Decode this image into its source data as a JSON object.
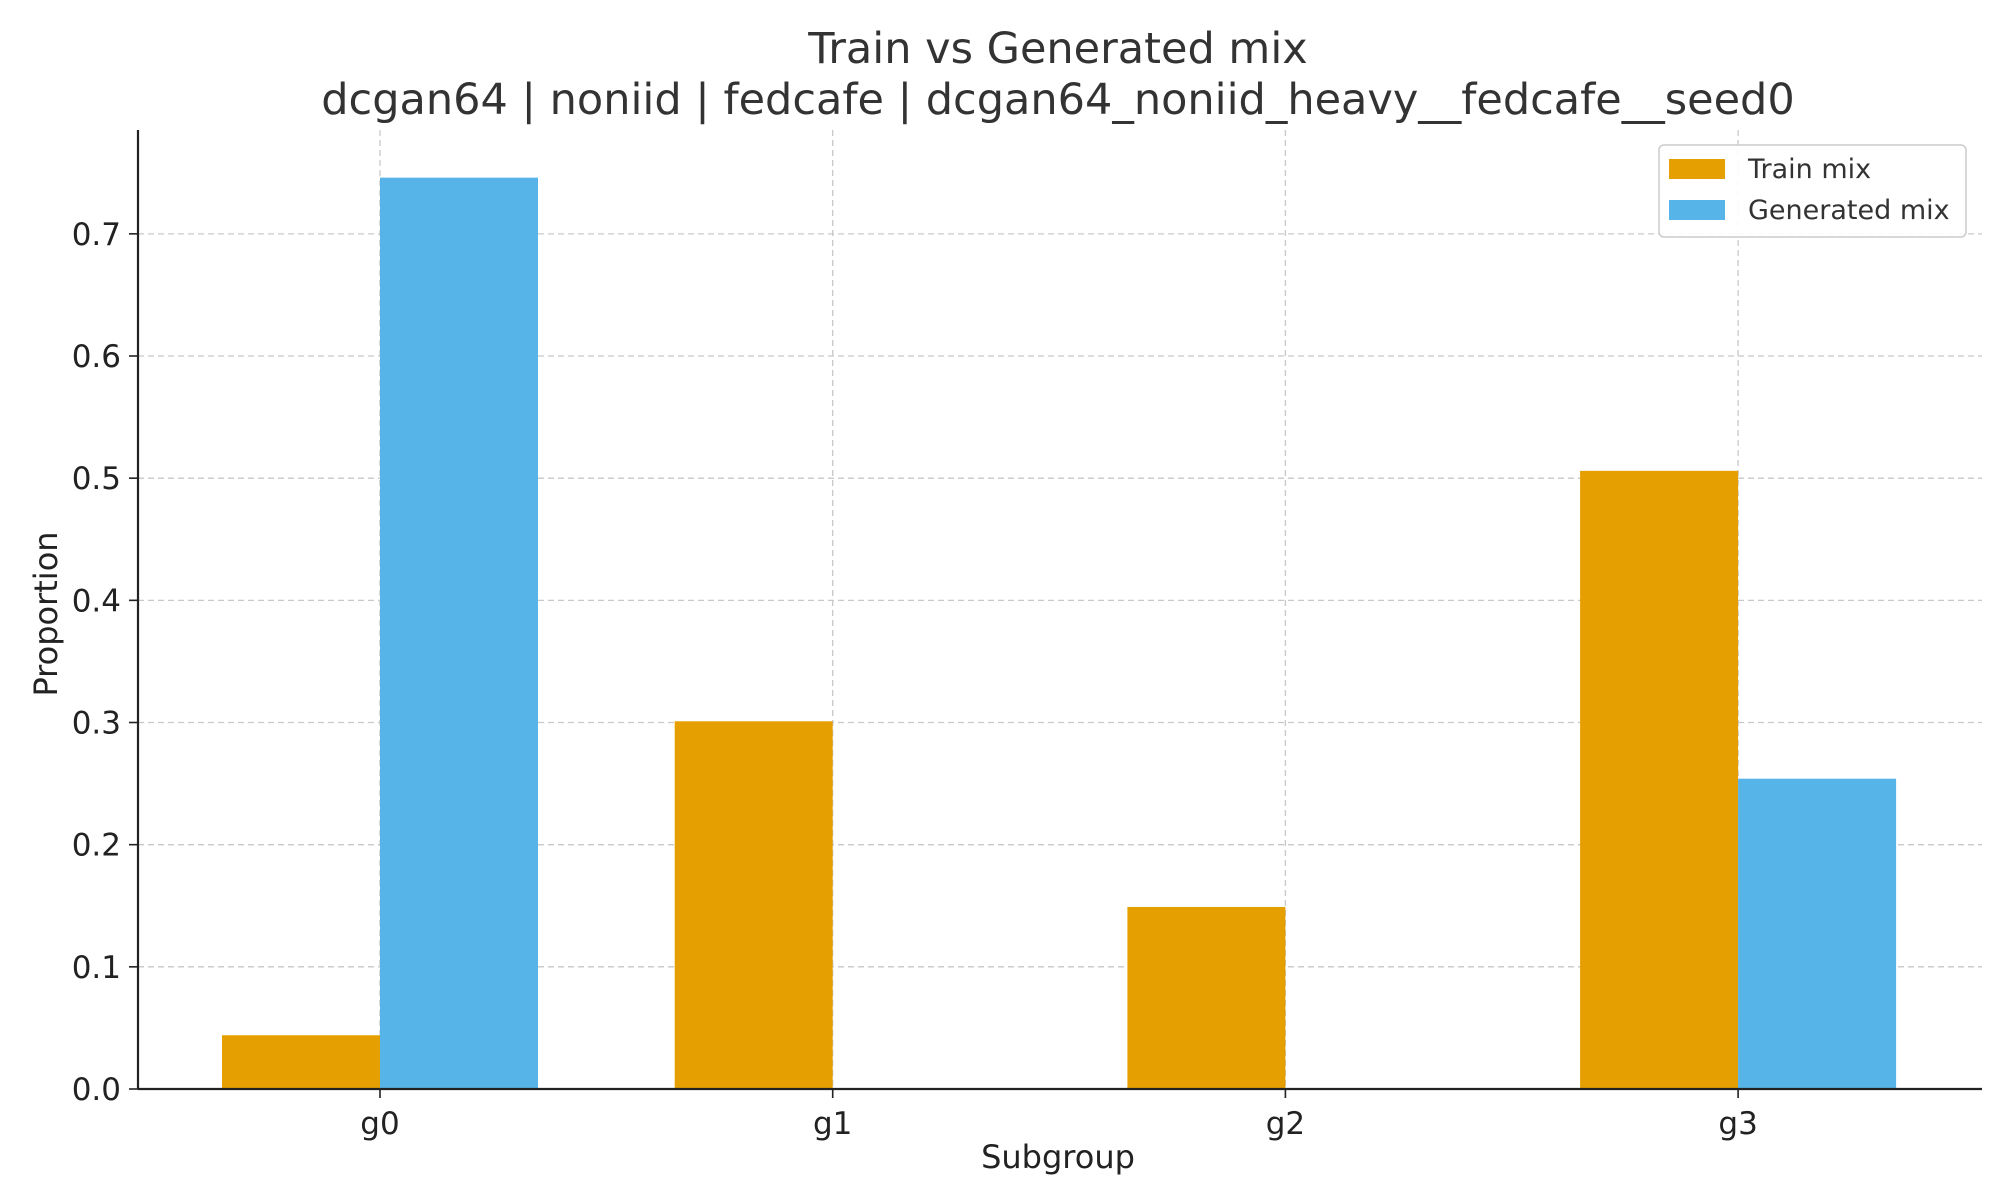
{
  "chart_data": {
    "type": "bar",
    "title": "Train vs Generated mix",
    "subtitle": "dcgan64 | noniid | fedcafe | dcgan64_noniid_heavy__fedcafe__seed0",
    "xlabel": "Subgroup",
    "ylabel": "Proportion",
    "categories": [
      "g0",
      "g1",
      "g2",
      "g3"
    ],
    "series": [
      {
        "name": "Train mix",
        "color": "#E69F00",
        "values": [
          0.044,
          0.301,
          0.149,
          0.506
        ]
      },
      {
        "name": "Generated mix",
        "color": "#56B4E9",
        "values": [
          0.746,
          0.0,
          0.0,
          0.254
        ]
      }
    ],
    "ylim": [
      0,
      0.785
    ],
    "yticks": [
      0.0,
      0.1,
      0.2,
      0.3,
      0.4,
      0.5,
      0.6,
      0.7
    ],
    "ytick_labels": [
      "0.0",
      "0.1",
      "0.2",
      "0.3",
      "0.4",
      "0.5",
      "0.6",
      "0.7"
    ],
    "grid": true,
    "legend_position": "top-right"
  }
}
